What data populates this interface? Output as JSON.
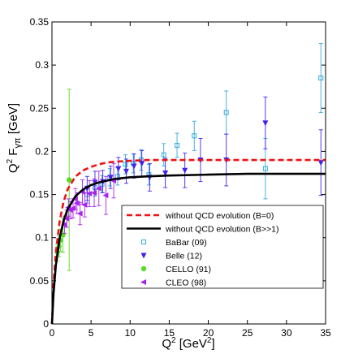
{
  "chart_data": {
    "type": "scatter",
    "xlim": [
      0,
      35
    ],
    "ylim": [
      0,
      0.35
    ],
    "x_ticks": [
      0,
      5,
      10,
      15,
      20,
      25,
      30,
      35
    ],
    "y_ticks": [
      0,
      0.05,
      0.1,
      0.15,
      0.2,
      0.25,
      0.3,
      0.35
    ],
    "x_tick_labels": [
      "0",
      "5",
      "10",
      "15",
      "20",
      "25",
      "30",
      "35"
    ],
    "y_tick_labels": [
      "0",
      "0.05",
      "0.1",
      "0.15",
      "0.2",
      "0.25",
      "0.3",
      "0.35"
    ],
    "xlabel": "Q² [GeV²]",
    "ylabel": "Q² Fγπ [GeV]",
    "grid": false,
    "legend_placement": "bottom-right",
    "curves": [
      {
        "name": "without QCD evolution (B=0)",
        "color": "#ee1111",
        "style": "dashed",
        "x": [
          0,
          0.2,
          0.5,
          1,
          1.5,
          2,
          3,
          4,
          5,
          6,
          7,
          8,
          10,
          12,
          15,
          20,
          25,
          30,
          35
        ],
        "y": [
          0,
          0.045,
          0.083,
          0.12,
          0.142,
          0.156,
          0.171,
          0.178,
          0.182,
          0.185,
          0.187,
          0.188,
          0.189,
          0.19,
          0.19,
          0.19,
          0.19,
          0.19,
          0.19
        ]
      },
      {
        "name": "without QCD evolution (B>>1)",
        "color": "#000000",
        "style": "solid",
        "x": [
          0,
          0.2,
          0.5,
          1,
          1.5,
          2,
          3,
          4,
          5,
          6,
          8,
          10,
          12,
          15,
          20,
          25,
          30,
          35
        ],
        "y": [
          0,
          0.035,
          0.068,
          0.1,
          0.12,
          0.133,
          0.148,
          0.156,
          0.161,
          0.164,
          0.168,
          0.17,
          0.171,
          0.172,
          0.173,
          0.174,
          0.174,
          0.174
        ]
      }
    ],
    "series": [
      {
        "name": "BaBar (09)",
        "color": "#33aadd",
        "marker": "square-open",
        "points": [
          {
            "x": 4.5,
            "y": 0.15,
            "err": 0.01
          },
          {
            "x": 5.5,
            "y": 0.158,
            "err": 0.01
          },
          {
            "x": 6.4,
            "y": 0.162,
            "err": 0.01
          },
          {
            "x": 7.4,
            "y": 0.17,
            "err": 0.01
          },
          {
            "x": 8.4,
            "y": 0.171,
            "err": 0.01
          },
          {
            "x": 9.4,
            "y": 0.185,
            "err": 0.011
          },
          {
            "x": 10.4,
            "y": 0.186,
            "err": 0.011
          },
          {
            "x": 11.4,
            "y": 0.19,
            "err": 0.012
          },
          {
            "x": 12.4,
            "y": 0.173,
            "err": 0.012
          },
          {
            "x": 14.3,
            "y": 0.196,
            "err": 0.013
          },
          {
            "x": 16.0,
            "y": 0.207,
            "err": 0.014
          },
          {
            "x": 18.2,
            "y": 0.218,
            "err": 0.017
          },
          {
            "x": 22.3,
            "y": 0.245,
            "err": 0.025
          },
          {
            "x": 27.3,
            "y": 0.18,
            "err": 0.035
          },
          {
            "x": 34.4,
            "y": 0.285,
            "err": 0.04
          }
        ]
      },
      {
        "name": "Belle (12)",
        "color": "#4422ee",
        "marker": "triangle-down",
        "points": [
          {
            "x": 4.5,
            "y": 0.157,
            "err": 0.014
          },
          {
            "x": 5.5,
            "y": 0.164,
            "err": 0.013
          },
          {
            "x": 6.5,
            "y": 0.165,
            "err": 0.013
          },
          {
            "x": 7.5,
            "y": 0.17,
            "err": 0.013
          },
          {
            "x": 8.5,
            "y": 0.18,
            "err": 0.013
          },
          {
            "x": 9.5,
            "y": 0.177,
            "err": 0.014
          },
          {
            "x": 10.5,
            "y": 0.183,
            "err": 0.014
          },
          {
            "x": 11.5,
            "y": 0.186,
            "err": 0.015
          },
          {
            "x": 12.5,
            "y": 0.17,
            "err": 0.016
          },
          {
            "x": 14.5,
            "y": 0.175,
            "err": 0.017
          },
          {
            "x": 17.0,
            "y": 0.178,
            "err": 0.02
          },
          {
            "x": 19.0,
            "y": 0.19,
            "err": 0.025
          },
          {
            "x": 22.3,
            "y": 0.19,
            "err": 0.03
          },
          {
            "x": 27.3,
            "y": 0.233,
            "err": 0.03
          },
          {
            "x": 34.4,
            "y": 0.187,
            "err": 0.038
          }
        ]
      },
      {
        "name": "CELLO (91)",
        "color": "#55dd22",
        "marker": "circle",
        "points": [
          {
            "x": 0.7,
            "y": 0.083,
            "err": 0.01
          },
          {
            "x": 0.9,
            "y": 0.09,
            "err": 0.012
          },
          {
            "x": 1.1,
            "y": 0.097,
            "err": 0.013
          },
          {
            "x": 1.4,
            "y": 0.103,
            "err": 0.02
          },
          {
            "x": 2.2,
            "y": 0.167,
            "err": 0.105
          }
        ]
      },
      {
        "name": "CLEO (98)",
        "color": "#aa22ee",
        "marker": "triangle-left",
        "points": [
          {
            "x": 1.6,
            "y": 0.115,
            "err": 0.01
          },
          {
            "x": 1.9,
            "y": 0.122,
            "err": 0.01
          },
          {
            "x": 2.1,
            "y": 0.135,
            "err": 0.01
          },
          {
            "x": 2.4,
            "y": 0.132,
            "err": 0.01
          },
          {
            "x": 2.7,
            "y": 0.134,
            "err": 0.011
          },
          {
            "x": 3.0,
            "y": 0.145,
            "err": 0.012
          },
          {
            "x": 3.2,
            "y": 0.14,
            "err": 0.012
          },
          {
            "x": 3.6,
            "y": 0.128,
            "err": 0.013
          },
          {
            "x": 3.9,
            "y": 0.153,
            "err": 0.014
          },
          {
            "x": 4.2,
            "y": 0.138,
            "err": 0.014
          },
          {
            "x": 4.8,
            "y": 0.151,
            "err": 0.015
          },
          {
            "x": 5.4,
            "y": 0.152,
            "err": 0.016
          },
          {
            "x": 6.0,
            "y": 0.157,
            "err": 0.02
          },
          {
            "x": 6.9,
            "y": 0.149,
            "err": 0.022
          },
          {
            "x": 7.9,
            "y": 0.166,
            "err": 0.02
          }
        ]
      }
    ]
  }
}
